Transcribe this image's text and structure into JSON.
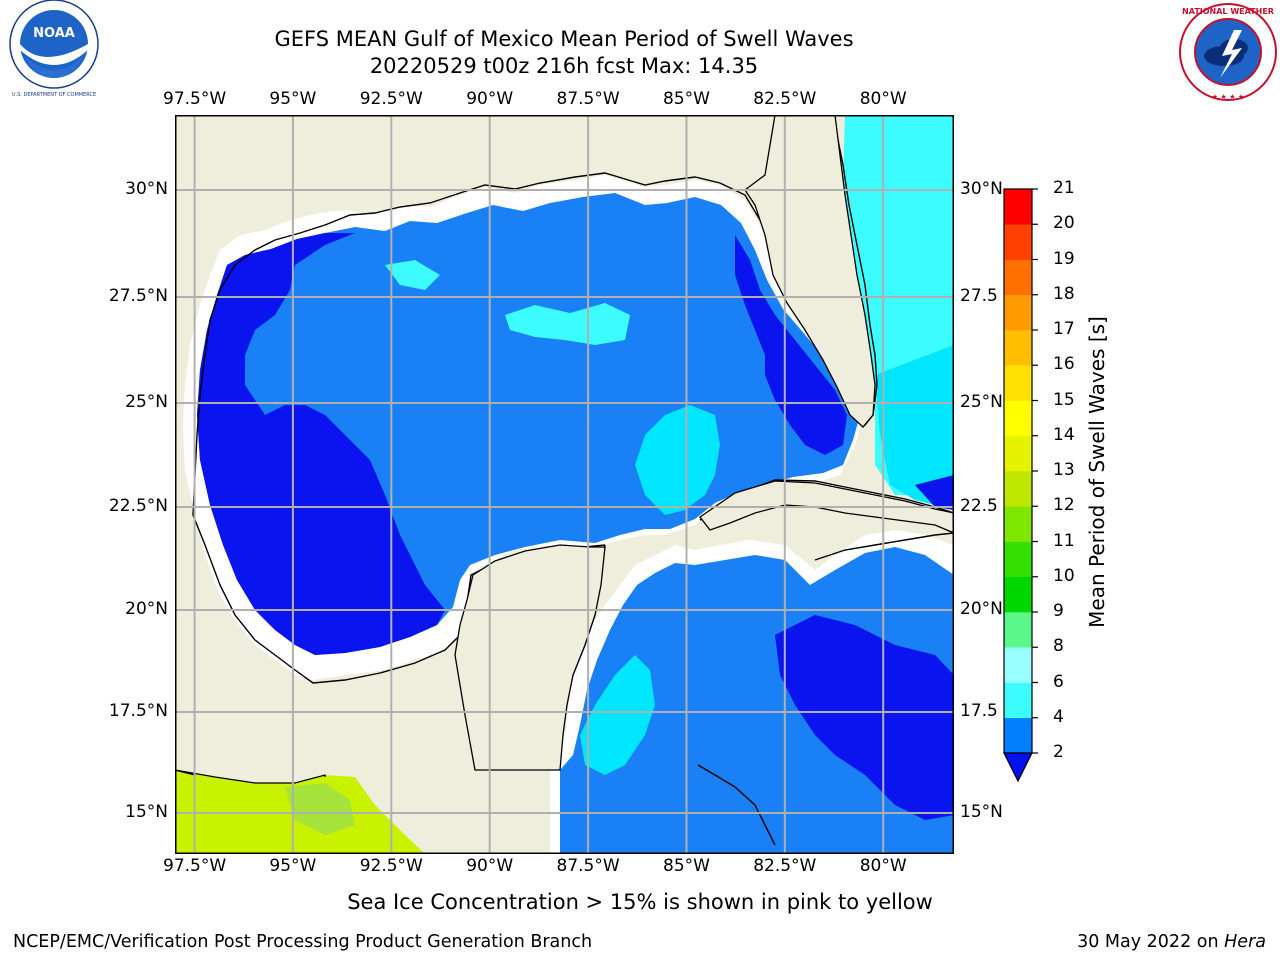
{
  "header": {
    "title_line1": "GEFS MEAN Gulf of Mexico Mean Period of Swell Waves",
    "title_line2": "20220529 t00z 216h fcst   Max: 14.35"
  },
  "logos": {
    "left": {
      "icon": "noaa-logo",
      "text": "NOAA",
      "ring_text": "NATIONAL OCEANIC AND ATMOSPHERIC ADMINISTRATION · U.S. DEPARTMENT OF COMMERCE"
    },
    "right": {
      "icon": "nws-logo",
      "ring_text": "NATIONAL WEATHER SERVICE"
    }
  },
  "map": {
    "lon_ticks": [
      "97.5°W",
      "95°W",
      "92.5°W",
      "90°W",
      "87.5°W",
      "85°W",
      "82.5°W",
      "80°W"
    ],
    "lat_ticks_left": [
      "30°N",
      "27.5°N",
      "25°N",
      "22.5°N",
      "20°N",
      "17.5°N",
      "15°N"
    ],
    "lat_ticks_right": [
      "30°N",
      "27.5",
      "25°N",
      "22.5",
      "20°N",
      "17.5",
      "15°N"
    ],
    "lon_range": [
      -98.0,
      -78.2
    ],
    "lat_range": [
      14.0,
      31.8
    ]
  },
  "colorbar": {
    "title": "Mean Period of Swell Waves [s]",
    "ticks": [
      "2",
      "4",
      "6",
      "8",
      "9",
      "10",
      "11",
      "12",
      "13",
      "14",
      "15",
      "16",
      "17",
      "18",
      "19",
      "20",
      "21"
    ],
    "colors": [
      "#0080ff",
      "#00e6ff",
      "#3dfcff",
      "#99ffff",
      "#5cf78a",
      "#00d600",
      "#35e000",
      "#7fe600",
      "#bfe600",
      "#e6f200",
      "#ffff00",
      "#ffe000",
      "#ffbf00",
      "#ff9900",
      "#ff7000",
      "#ff4000",
      "#ff0000"
    ],
    "extend_color": "#0010f0"
  },
  "footer": {
    "ice_note": "Sea Ice Concentration > 15% is shown in pink to yellow",
    "left": "NCEP/EMC/Verification Post Processing Product Generation Branch",
    "date": "30 May 2022 on ",
    "machine": "Hera"
  }
}
